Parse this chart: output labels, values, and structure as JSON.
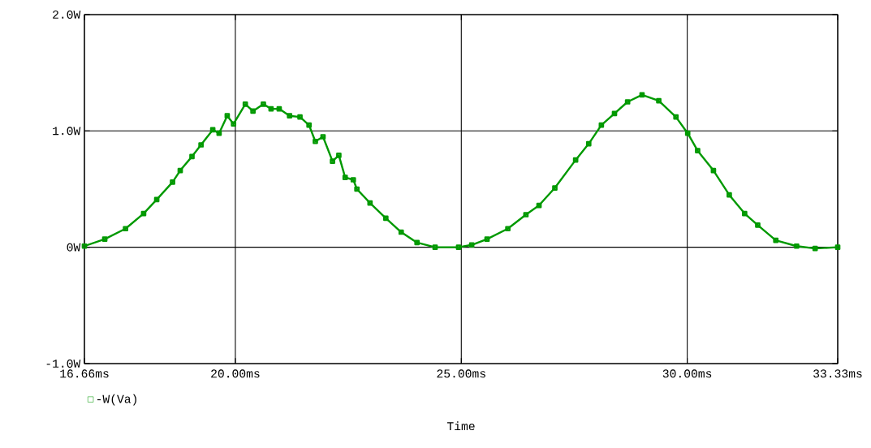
{
  "chart_data": {
    "type": "line",
    "xlabel": "Time",
    "x": [
      16.66,
      17.11,
      17.57,
      17.97,
      18.26,
      18.61,
      18.78,
      19.04,
      19.24,
      19.5,
      19.64,
      19.82,
      19.96,
      20.22,
      20.39,
      20.62,
      20.79,
      20.97,
      21.2,
      21.43,
      21.63,
      21.77,
      21.94,
      22.15,
      22.29,
      22.43,
      22.61,
      22.69,
      22.98,
      23.33,
      23.67,
      24.02,
      24.42,
      24.94,
      25.23,
      25.57,
      26.03,
      26.43,
      26.72,
      27.07,
      27.53,
      27.82,
      28.1,
      28.39,
      28.68,
      29.0,
      29.37,
      29.75,
      30.01,
      30.23,
      30.58,
      30.93,
      31.27,
      31.56,
      31.96,
      32.42,
      32.83,
      33.33
    ],
    "series": [
      {
        "name": "-W(Va)",
        "color": "#009900",
        "values": [
          0.01,
          0.07,
          0.16,
          0.29,
          0.41,
          0.56,
          0.66,
          0.78,
          0.88,
          1.01,
          0.98,
          1.13,
          1.06,
          1.23,
          1.17,
          1.23,
          1.19,
          1.19,
          1.13,
          1.12,
          1.05,
          0.91,
          0.95,
          0.74,
          0.79,
          0.6,
          0.58,
          0.5,
          0.38,
          0.25,
          0.13,
          0.04,
          0,
          0,
          0.02,
          0.07,
          0.16,
          0.28,
          0.36,
          0.51,
          0.75,
          0.89,
          1.05,
          1.15,
          1.25,
          1.31,
          1.26,
          1.12,
          0.98,
          0.83,
          0.66,
          0.45,
          0.29,
          0.19,
          0.06,
          0.01,
          -0.01,
          0
        ]
      }
    ],
    "xlim": [
      16.66,
      33.33
    ],
    "ylim": [
      -1.0,
      2.0
    ],
    "xticks": [
      {
        "value": 16.66,
        "label": "16.66ms"
      },
      {
        "value": 20,
        "label": "20.00ms"
      },
      {
        "value": 25,
        "label": "25.00ms"
      },
      {
        "value": 30,
        "label": "30.00ms"
      },
      {
        "value": 33.33,
        "label": "33.33ms"
      }
    ],
    "yticks": [
      {
        "value": -1.0,
        "label": "-1.0W"
      },
      {
        "value": 0,
        "label": "0W"
      },
      {
        "value": 1.0,
        "label": "1.0W"
      },
      {
        "value": 2.0,
        "label": "2.0W"
      }
    ],
    "grid": true,
    "legend": "bottom left",
    "marker": "square",
    "line_style": "solid"
  }
}
